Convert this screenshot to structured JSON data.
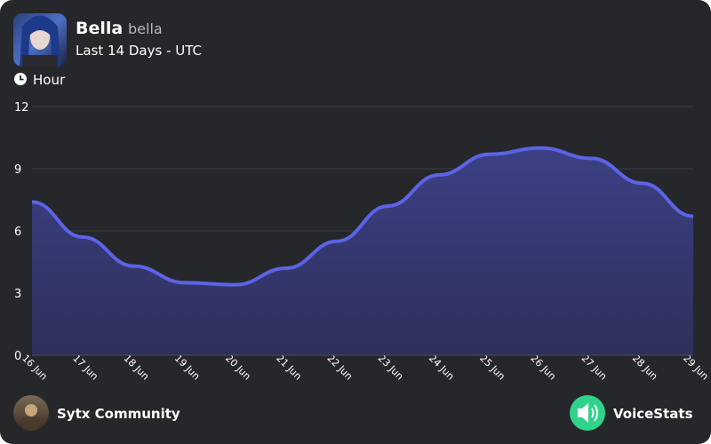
{
  "header": {
    "name": "Bella",
    "username": "bella",
    "subtitle": "Last 14 Days - UTC"
  },
  "chart_data": {
    "type": "area",
    "y_label": "Hour",
    "categories": [
      "16 Jun",
      "17 Jun",
      "18 Jun",
      "19 Jun",
      "20 Jun",
      "21 Jun",
      "22 Jun",
      "23 Jun",
      "24 Jun",
      "25 Jun",
      "26 Jun",
      "27 Jun",
      "28 Jun",
      "29 Jun"
    ],
    "series": [
      {
        "color": "#5b63e6",
        "values": [
          7.4,
          5.7,
          4.3,
          3.5,
          3.4,
          4.2,
          5.5,
          7.2,
          8.7,
          9.7,
          10.0,
          9.5,
          8.3,
          6.7
        ]
      }
    ],
    "ylim": [
      0,
      12
    ],
    "yticks": [
      0,
      3,
      6,
      9,
      12
    ],
    "grid": true
  },
  "footer": {
    "community": "Sytx Community",
    "brand": "VoiceStats"
  }
}
